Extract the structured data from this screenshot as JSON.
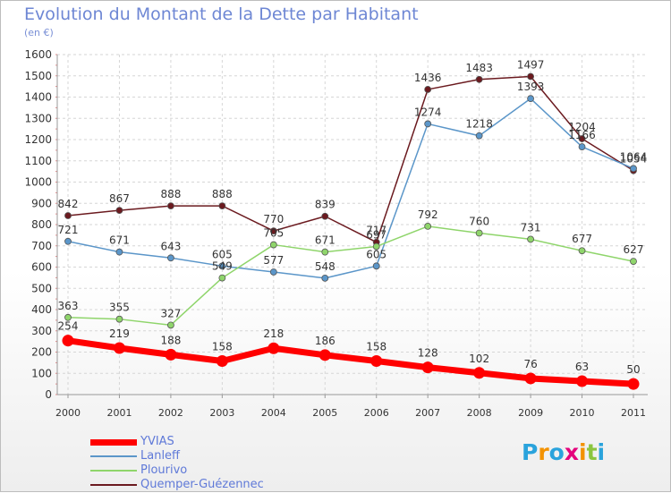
{
  "chart_data": {
    "type": "line",
    "title": "Evolution du Montant de la Dette par Habitant",
    "subtitle": "(en €)",
    "xlabel": "",
    "ylabel": "",
    "ylim": [
      0,
      1600
    ],
    "yticks": [
      0,
      100,
      200,
      300,
      400,
      500,
      600,
      700,
      800,
      900,
      1000,
      1100,
      1200,
      1300,
      1400,
      1500,
      1600
    ],
    "categories": [
      "2000",
      "2001",
      "2002",
      "2003",
      "2004",
      "2005",
      "2006",
      "2007",
      "2008",
      "2009",
      "2010",
      "2011"
    ],
    "grid": true,
    "legend_position": "bottom-left",
    "series": [
      {
        "name": "Quemper-Guézennec",
        "color": "#6b1a1f",
        "values": [
          842,
          867,
          888,
          888,
          770,
          839,
          717,
          1436,
          1483,
          1497,
          1204,
          1054
        ]
      },
      {
        "name": "Lanleff",
        "color": "#5b96c9",
        "values": [
          721,
          671,
          643,
          605,
          577,
          548,
          605,
          1274,
          1218,
          1393,
          1166,
          1064
        ]
      },
      {
        "name": "Plourivo",
        "color": "#8fd56b",
        "values": [
          363,
          355,
          327,
          549,
          705,
          671,
          697,
          792,
          760,
          731,
          677,
          627
        ]
      },
      {
        "name": "YVIAS",
        "color": "#ff0000",
        "values": [
          254,
          219,
          188,
          158,
          218,
          186,
          158,
          128,
          102,
          76,
          63,
          50
        ]
      }
    ]
  },
  "legend": [
    {
      "name": "YVIAS",
      "color": "#ff0000"
    },
    {
      "name": "Lanleff",
      "color": "#5b96c9"
    },
    {
      "name": "Plourivo",
      "color": "#8fd56b"
    },
    {
      "name": "Quemper-Guézennec",
      "color": "#6b1a1f"
    }
  ],
  "logo": {
    "letters": [
      "P",
      "r",
      "o",
      "x",
      "i",
      "t",
      "i"
    ],
    "colors": [
      "#2aa3dc",
      "#f39200",
      "#2aa3dc",
      "#e4007c",
      "#f39200",
      "#8bc53f",
      "#2aa3dc"
    ]
  }
}
